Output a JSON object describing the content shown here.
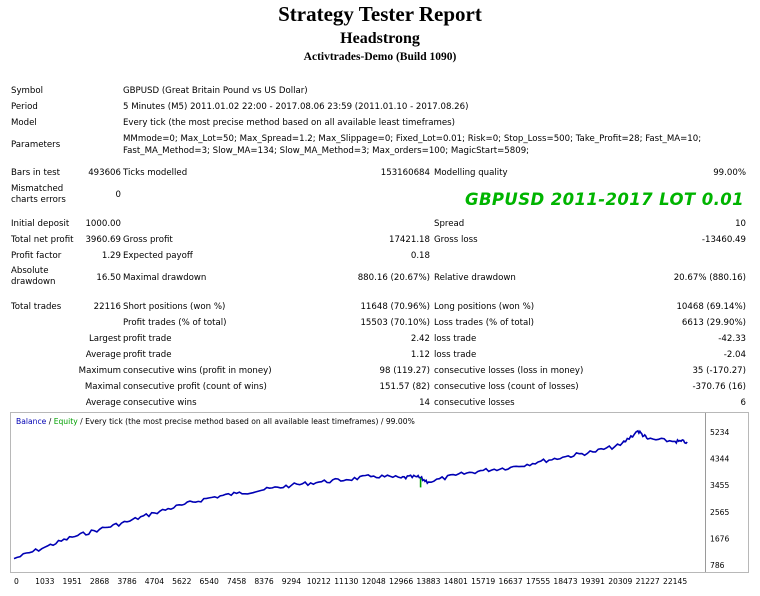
{
  "header": {
    "title": "Strategy Tester Report",
    "expert": "Headstrong",
    "server": "Activtrades-Demo (Build 1090)"
  },
  "overlay_text": "GBPUSD 2011-2017 LOT 0.01",
  "info": {
    "symbol_label": "Symbol",
    "symbol_value": "GBPUSD (Great Britain Pound vs US Dollar)",
    "period_label": "Period",
    "period_value": "5 Minutes (M5) 2011.01.02 22:00 - 2017.08.06 23:59 (2011.01.10 - 2017.08.26)",
    "model_label": "Model",
    "model_value": "Every tick (the most precise method based on all available least timeframes)",
    "parameters_label": "Parameters",
    "parameters_line1": "MMmode=0; Max_Lot=50; Max_Spread=1.2; Max_Slippage=0; Fixed_Lot=0.01; Risk=0; Stop_Loss=500; Take_Profit=28; Fast_MA=10;",
    "parameters_line2": "Fast_MA_Method=3; Slow_MA=134; Slow_MA_Method=3; Max_orders=100; MagicStart=5809;"
  },
  "stats": {
    "bars_label": "Bars in test",
    "bars_value": "493606",
    "ticks_label": "Ticks modelled",
    "ticks_value": "153160684",
    "quality_label": "Modelling quality",
    "quality_value": "99.00%",
    "mismatch_label": "Mismatched charts errors",
    "mismatch_value": "0",
    "deposit_label": "Initial deposit",
    "deposit_value": "1000.00",
    "spread_label": "Spread",
    "spread_value": "10",
    "netprofit_label": "Total net profit",
    "netprofit_value": "3960.69",
    "grossprofit_label": "Gross profit",
    "grossprofit_value": "17421.18",
    "grossloss_label": "Gross loss",
    "grossloss_value": "-13460.49",
    "pf_label": "Profit factor",
    "pf_value": "1.29",
    "ep_label": "Expected payoff",
    "ep_value": "0.18",
    "absdd_label": "Absolute drawdown",
    "absdd_value": "16.50",
    "maxdd_label": "Maximal drawdown",
    "maxdd_value": "880.16 (20.67%)",
    "reldd_label": "Relative drawdown",
    "reldd_value": "20.67% (880.16)",
    "trades_label": "Total trades",
    "trades_value": "22116",
    "short_label": "Short positions (won %)",
    "short_value": "11648 (70.96%)",
    "long_label": "Long positions (won %)",
    "long_value": "10468 (69.14%)",
    "profittrades_label": "Profit trades (% of total)",
    "profittrades_value": "15503 (70.10%)",
    "losstrades_label": "Loss trades (% of total)",
    "losstrades_value": "6613 (29.90%)",
    "largest_label": "Largest",
    "largest_pt_label": "profit trade",
    "largest_pt_value": "2.42",
    "largest_lt_label": "loss trade",
    "largest_lt_value": "-42.33",
    "average_label": "Average",
    "average_pt_label": "profit trade",
    "average_pt_value": "1.12",
    "average_lt_label": "loss trade",
    "average_lt_value": "-2.04",
    "maximum_label": "Maximum",
    "max_cw_label": "consecutive wins (profit in money)",
    "max_cw_value": "98 (119.27)",
    "max_cl_label": "consecutive losses (loss in money)",
    "max_cl_value": "35 (-170.27)",
    "maximal_label": "Maximal",
    "mxl_cp_label": "consecutive profit (count of wins)",
    "mxl_cp_value": "151.57 (82)",
    "mxl_cl_label": "consecutive loss (count of losses)",
    "mxl_cl_value": "-370.76 (16)",
    "avg2_label": "Average",
    "avg_cw_label": "consecutive wins",
    "avg_cw_value": "14",
    "avg_cl_label": "consecutive losses",
    "avg_cl_value": "6"
  },
  "chart_data": {
    "type": "line",
    "legend": {
      "balance": "Balance",
      "sep": " / ",
      "equity": "Equity",
      "rest": " / Every tick (the most precise method based on all available least timeframes) / 99.00%"
    },
    "colors": {
      "balance": "#0000b4",
      "equity": "#00a000",
      "frame": "#b8b8b8"
    },
    "x_ticks": [
      "0",
      "1033",
      "1951",
      "2868",
      "3786",
      "4704",
      "5622",
      "6540",
      "7458",
      "8376",
      "9294",
      "10212",
      "11130",
      "12048",
      "12966",
      "13883",
      "14801",
      "15719",
      "16637",
      "17555",
      "18473",
      "19391",
      "20309",
      "21227",
      "22145"
    ],
    "y_ticks": [
      "5234",
      "4344",
      "3455",
      "2565",
      "1676",
      "786"
    ],
    "ylim": [
      786,
      5234
    ],
    "xlim": [
      0,
      22980
    ],
    "series": [
      {
        "name": "Balance",
        "x": [
          0,
          1033,
          1951,
          2868,
          3786,
          4704,
          5622,
          6540,
          7458,
          8376,
          9294,
          10212,
          11130,
          12048,
          12966,
          13500,
          13883,
          14801,
          15719,
          16637,
          17555,
          18473,
          19391,
          20309,
          20900,
          21227,
          22145,
          22550
        ],
        "values": [
          1000,
          1380,
          1720,
          1980,
          2230,
          2530,
          2790,
          3030,
          3180,
          3300,
          3450,
          3560,
          3640,
          3760,
          3700,
          3740,
          3560,
          3790,
          3950,
          4050,
          4230,
          4410,
          4570,
          4790,
          5270,
          5000,
          4920,
          4900
        ]
      }
    ]
  }
}
